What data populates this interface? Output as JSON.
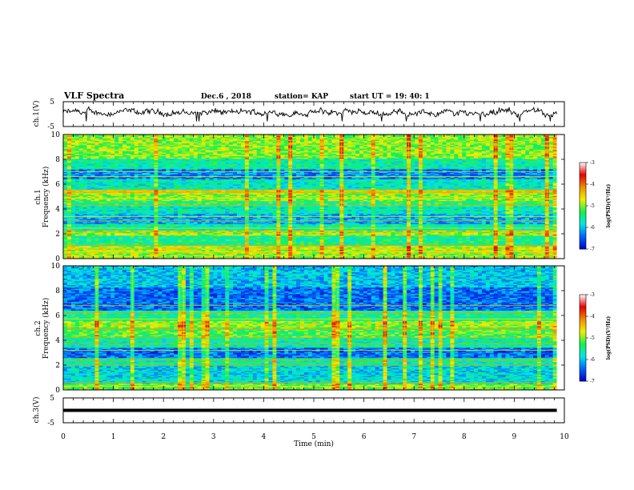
{
  "header": {
    "title": "VLF Spectra",
    "date": "Dec.6 , 2018",
    "station": "station= KAP",
    "start_ut": "start  UT =    19: 40: 1"
  },
  "chart_data": [
    {
      "type": "line",
      "name": "ch1-waveform",
      "ylabel": "ch.1(V)",
      "ylim": [
        -5,
        5
      ],
      "yticks": [
        "5",
        "-5"
      ],
      "xlim": [
        0,
        10
      ],
      "x_extent": [
        0,
        9.85
      ],
      "y_mean": 0.6,
      "y_spread": 1.6,
      "color": "#000000"
    },
    {
      "type": "heatmap",
      "name": "ch1-spectrogram",
      "ylabel_line1": "ch.1",
      "ylabel_line2": "Frequency  (kHz)",
      "ylim": [
        0,
        10
      ],
      "yticks": [
        "0",
        "2",
        "4",
        "6",
        "8",
        "10"
      ],
      "xlim": [
        0,
        10
      ],
      "x_extent": [
        0,
        9.85
      ],
      "bands": [
        {
          "f": [
            0.0,
            0.4
          ],
          "level": -5.0
        },
        {
          "f": [
            0.4,
            1.0
          ],
          "level": -4.8
        },
        {
          "f": [
            1.0,
            1.8
          ],
          "level": -5.5
        },
        {
          "f": [
            1.8,
            2.3
          ],
          "level": -4.9
        },
        {
          "f": [
            2.3,
            2.8
          ],
          "level": -5.6
        },
        {
          "f": [
            2.8,
            3.6
          ],
          "level": -6.1
        },
        {
          "f": [
            3.6,
            4.2
          ],
          "level": -5.7
        },
        {
          "f": [
            4.2,
            4.6
          ],
          "level": -5.4
        },
        {
          "f": [
            4.6,
            5.2
          ],
          "level": -5.0
        },
        {
          "f": [
            5.2,
            5.6
          ],
          "level": -4.7
        },
        {
          "f": [
            5.6,
            6.4
          ],
          "level": -5.7
        },
        {
          "f": [
            6.4,
            7.2
          ],
          "level": -6.3
        },
        {
          "f": [
            7.2,
            8.0
          ],
          "level": -5.6
        },
        {
          "f": [
            8.0,
            10.0
          ],
          "level": -5.0
        }
      ],
      "lines_khz": [
        0.2,
        0.55,
        1.05,
        2.15,
        2.45,
        3.05,
        3.4,
        4.3,
        4.85,
        5.35,
        5.5,
        6.6,
        7.0
      ],
      "colorbar": {
        "ticks": [
          "-3",
          "-4",
          "-5",
          "-6",
          "-7"
        ],
        "range": [
          -7,
          -3
        ],
        "label": "log(PSD)(V²/Hz)"
      }
    },
    {
      "type": "heatmap",
      "name": "ch2-spectrogram",
      "ylabel_line1": "ch.2",
      "ylabel_line2": "Frequency  (kHz)",
      "ylim": [
        0,
        10
      ],
      "yticks": [
        "0",
        "2",
        "4",
        "6",
        "8",
        "10"
      ],
      "xlim": [
        0,
        10
      ],
      "x_extent": [
        0,
        9.85
      ],
      "bands": [
        {
          "f": [
            0.0,
            0.5
          ],
          "level": -5.1
        },
        {
          "f": [
            0.5,
            1.0
          ],
          "level": -5.8
        },
        {
          "f": [
            1.0,
            1.9
          ],
          "level": -5.9
        },
        {
          "f": [
            1.9,
            2.6
          ],
          "level": -5.6
        },
        {
          "f": [
            2.6,
            3.4
          ],
          "level": -6.4
        },
        {
          "f": [
            3.4,
            4.2
          ],
          "level": -5.6
        },
        {
          "f": [
            4.2,
            5.0
          ],
          "level": -5.2
        },
        {
          "f": [
            5.0,
            5.6
          ],
          "level": -4.9
        },
        {
          "f": [
            5.6,
            6.4
          ],
          "level": -5.5
        },
        {
          "f": [
            6.4,
            8.2
          ],
          "level": -6.4
        },
        {
          "f": [
            8.2,
            10.0
          ],
          "level": -6.0
        }
      ],
      "lines_khz": [
        0.3,
        0.6,
        2.0,
        2.4,
        3.2,
        3.7,
        4.2,
        4.9,
        5.7,
        6.2,
        6.8
      ],
      "colorbar": {
        "ticks": [
          "-3",
          "-4",
          "-5",
          "-6",
          "-7"
        ],
        "range": [
          -7,
          -3
        ],
        "label": "log(PSD)(V²/Hz)"
      }
    },
    {
      "type": "line",
      "name": "ch3-waveform",
      "ylabel": "ch.3(V)",
      "ylim": [
        -5,
        5
      ],
      "yticks": [
        "5",
        "-5"
      ],
      "xlim": [
        0,
        10
      ],
      "x_extent": [
        0,
        9.85
      ],
      "y_mean": 0.0,
      "y_spread": 0.0,
      "color": "#000000"
    }
  ],
  "x_axis": {
    "label": "Time  (min)",
    "ticks": [
      "0",
      "1",
      "2",
      "3",
      "4",
      "5",
      "6",
      "7",
      "8",
      "9",
      "10"
    ]
  },
  "colormap": [
    "#0000c8",
    "#0064ff",
    "#00e6e6",
    "#14f050",
    "#f0f000",
    "#f08c00",
    "#e60000",
    "#ffffff"
  ]
}
